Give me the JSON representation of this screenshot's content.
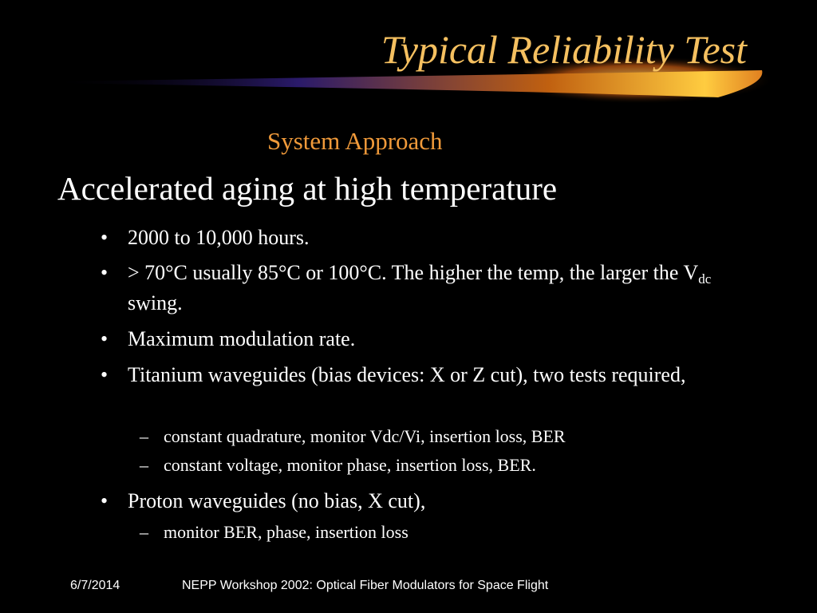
{
  "title": "Typical Reliability Test",
  "subtitle": "System Approach",
  "heading": "Accelerated aging at high temperature",
  "bullets": [
    {
      "text": "2000 to 10,000 hours."
    },
    {
      "text": "> 70°C usually 85°C or 100°C.  The higher the temp, the larger the V",
      "subscript": "dc",
      "text_after": " swing."
    },
    {
      "text": "Maximum modulation rate."
    },
    {
      "text": "Titanium waveguides (bias devices: X or Z cut), two tests required,",
      "subitems": [
        "constant quadrature, monitor Vdc/Vi, insertion loss, BER",
        "constant voltage, monitor phase, insertion loss, BER."
      ]
    },
    {
      "text": "Proton waveguides (no bias, X cut),",
      "subitems": [
        "monitor BER, phase, insertion loss"
      ]
    }
  ],
  "footer": {
    "date": "6/7/2014",
    "text": "NEPP Workshop 2002: Optical Fiber Modulators for Space Flight"
  }
}
